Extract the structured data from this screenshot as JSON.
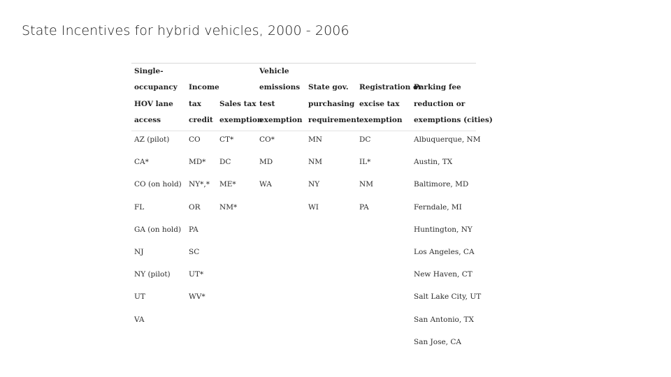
{
  "slide": {
    "title": "State Incentives for hybrid vehicles, 2000 - 2006"
  },
  "table": {
    "headers": [
      [
        "Single-",
        "occupancy",
        "HOV lane",
        "access"
      ],
      [
        "Income",
        "tax",
        "credit"
      ],
      [
        "Sales tax",
        "exemption"
      ],
      [
        "Vehicle",
        "emissions",
        "test",
        "exemption"
      ],
      [
        "State gov.",
        "purchasing",
        "requirement"
      ],
      [
        "Registration or",
        "excise tax",
        "exemption"
      ],
      [
        "Parking fee",
        "reduction or",
        "exemptions (cities)"
      ]
    ],
    "columns": [
      [
        "AZ (pilot)",
        "CA*",
        "CO (on hold)",
        "FL",
        "GA (on hold)",
        "NJ",
        "NY (pilot)",
        "UT",
        "VA"
      ],
      [
        "CO",
        "MD*",
        "NY*,*",
        "OR",
        "PA",
        "SC",
        "UT*",
        "WV*"
      ],
      [
        "CT*",
        "DC",
        "ME*",
        "NM*"
      ],
      [
        "CO*",
        "MD",
        "WA"
      ],
      [
        "MN",
        "NM",
        "NY",
        "WI"
      ],
      [
        "DC",
        "IL*",
        "NM",
        "PA"
      ],
      [
        "Albuquerque, NM",
        "Austin, TX",
        "Baltimore, MD",
        "Ferndale, MI",
        "Huntington, NY",
        "Los Angeles, CA",
        "New Haven, CT",
        "Salt Lake City, UT",
        "San Antonio, TX",
        "San Jose, CA"
      ]
    ]
  }
}
